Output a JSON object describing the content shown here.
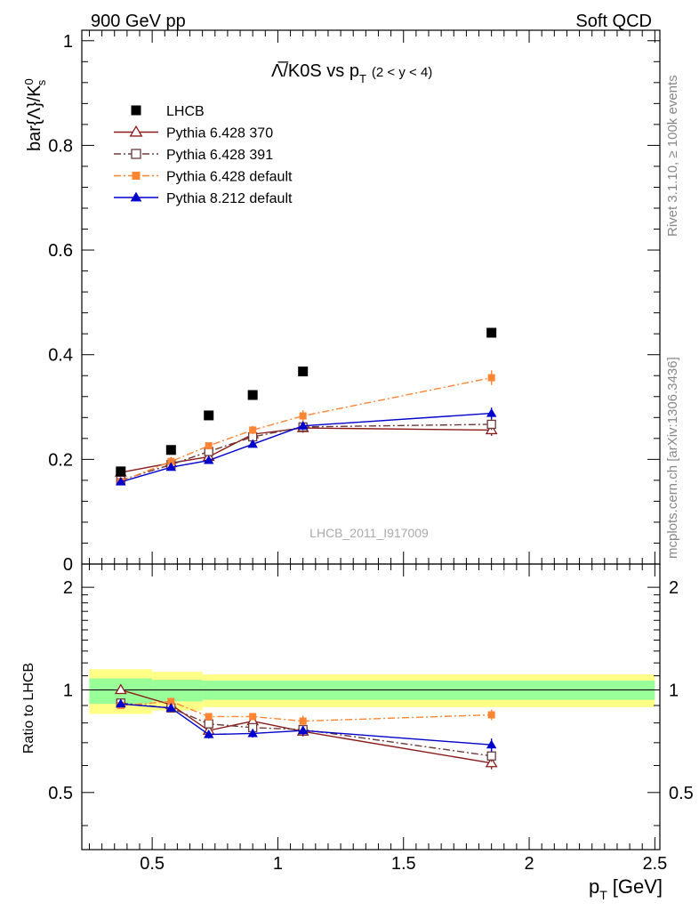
{
  "header": {
    "left": "900 GeV pp",
    "right": "Soft QCD"
  },
  "side": {
    "rivet": "Rivet 3.1.10, ≥ 100k events",
    "mcplots": "mcplots.cern.ch [arXiv:1306.3436]"
  },
  "watermark": "LHCB_2011_I917009",
  "chart_data": [
    {
      "type": "scatter",
      "title": "Λ̅/K0S vs p_T (2 < y < 4)",
      "title_main": "Λ̅/K0S vs p",
      "title_sub": "T",
      "title_range": "(2 < y < 4)",
      "ylabel": "bar{Λ}/K0s",
      "ylabel_main": "bar{Λ}/K",
      "ylabel_sup": "0",
      "ylabel_sub": "s",
      "xlim": [
        0.22,
        2.52
      ],
      "ylim": [
        0,
        1.02
      ],
      "yticks": [
        0,
        0.2,
        0.4,
        0.6,
        0.8,
        1
      ],
      "ytick_labels": [
        "0",
        "0.2",
        "0.4",
        "0.6",
        "0.8",
        "1"
      ],
      "x": [
        0.375,
        0.575,
        0.725,
        0.9,
        1.1,
        1.85
      ],
      "series": [
        {
          "name": "LHCB",
          "style": "data",
          "color": "#000000",
          "values": [
            0.177,
            0.218,
            0.284,
            0.323,
            0.368,
            0.442
          ],
          "errors": [
            0.004,
            0.004,
            0.005,
            0.005,
            0.006,
            0.007
          ]
        },
        {
          "name": "Pythia 6.428 370",
          "style": "open-triangle",
          "color": "#8b1a1a",
          "values": [
            0.175,
            0.193,
            0.205,
            0.248,
            0.26,
            0.256
          ],
          "errors": [
            0.005,
            0.005,
            0.006,
            0.007,
            0.009,
            0.011
          ]
        },
        {
          "name": "Pythia 6.428 391",
          "style": "open-square",
          "color": "#6b3a3a",
          "values": [
            0.16,
            0.19,
            0.215,
            0.243,
            0.262,
            0.267
          ],
          "errors": [
            0.005,
            0.005,
            0.006,
            0.007,
            0.009,
            0.011
          ]
        },
        {
          "name": "Pythia 6.428 default",
          "style": "filled-square-dashdot",
          "color": "#ff8533",
          "values": [
            0.158,
            0.196,
            0.226,
            0.256,
            0.283,
            0.356
          ],
          "errors": [
            0.005,
            0.005,
            0.006,
            0.008,
            0.011,
            0.014
          ]
        },
        {
          "name": "Pythia 8.212 default",
          "style": "filled-triangle",
          "color": "#0000cc",
          "values": [
            0.157,
            0.185,
            0.198,
            0.229,
            0.264,
            0.288
          ],
          "errors": [
            0.004,
            0.004,
            0.005,
            0.006,
            0.008,
            0.011
          ]
        }
      ]
    },
    {
      "type": "scatter",
      "ylabel": "Ratio to LHCB",
      "xlabel": "p_T [GeV]",
      "xlabel_main": "p",
      "xlabel_sub": "T",
      "xlabel_unit": "[GeV]",
      "xlim": [
        0.22,
        2.52
      ],
      "ylim": [
        0.34,
        2.34
      ],
      "yticks": [
        0.5,
        1,
        2
      ],
      "ytick_labels": [
        "0.5",
        "1",
        "2"
      ],
      "xticks": [
        0.5,
        1,
        1.5,
        2,
        2.5
      ],
      "xtick_labels": [
        "0.5",
        "1",
        "1.5",
        "2",
        "2.5"
      ],
      "bands": [
        {
          "name": "yellow",
          "color": "#ffff88",
          "bins": [
            [
              0.25,
              0.5,
              0.85,
              1.15
            ],
            [
              0.5,
              0.7,
              0.87,
              1.13
            ],
            [
              0.7,
              2.5,
              0.89,
              1.11
            ]
          ]
        },
        {
          "name": "green",
          "color": "#99ff99",
          "bins": [
            [
              0.25,
              0.5,
              0.91,
              1.08
            ],
            [
              0.5,
              0.7,
              0.925,
              1.07
            ],
            [
              0.7,
              2.5,
              0.935,
              1.065
            ]
          ]
        }
      ],
      "x": [
        0.375,
        0.575,
        0.725,
        0.9,
        1.1,
        1.85
      ],
      "series": [
        {
          "name": "Pythia 6.428 370",
          "color": "#8b1a1a",
          "values": [
            1.0,
            0.905,
            0.76,
            0.81,
            0.755,
            0.61
          ],
          "errors": [
            0.012,
            0.015,
            0.02,
            0.02,
            0.025,
            0.025
          ]
        },
        {
          "name": "Pythia 6.428 391",
          "color": "#6b3a3a",
          "values": [
            0.915,
            0.885,
            0.795,
            0.775,
            0.765,
            0.64
          ],
          "errors": [
            0.012,
            0.015,
            0.02,
            0.02,
            0.025,
            0.025
          ]
        },
        {
          "name": "Pythia 6.428 default",
          "color": "#ff8533",
          "values": [
            0.9,
            0.925,
            0.835,
            0.835,
            0.81,
            0.845
          ],
          "errors": [
            0.012,
            0.02,
            0.02,
            0.02,
            0.03,
            0.03
          ]
        },
        {
          "name": "Pythia 8.212 default",
          "color": "#0000cc",
          "values": [
            0.91,
            0.885,
            0.74,
            0.745,
            0.76,
            0.69
          ],
          "errors": [
            0.012,
            0.015,
            0.02,
            0.02,
            0.025,
            0.03
          ]
        }
      ]
    }
  ]
}
